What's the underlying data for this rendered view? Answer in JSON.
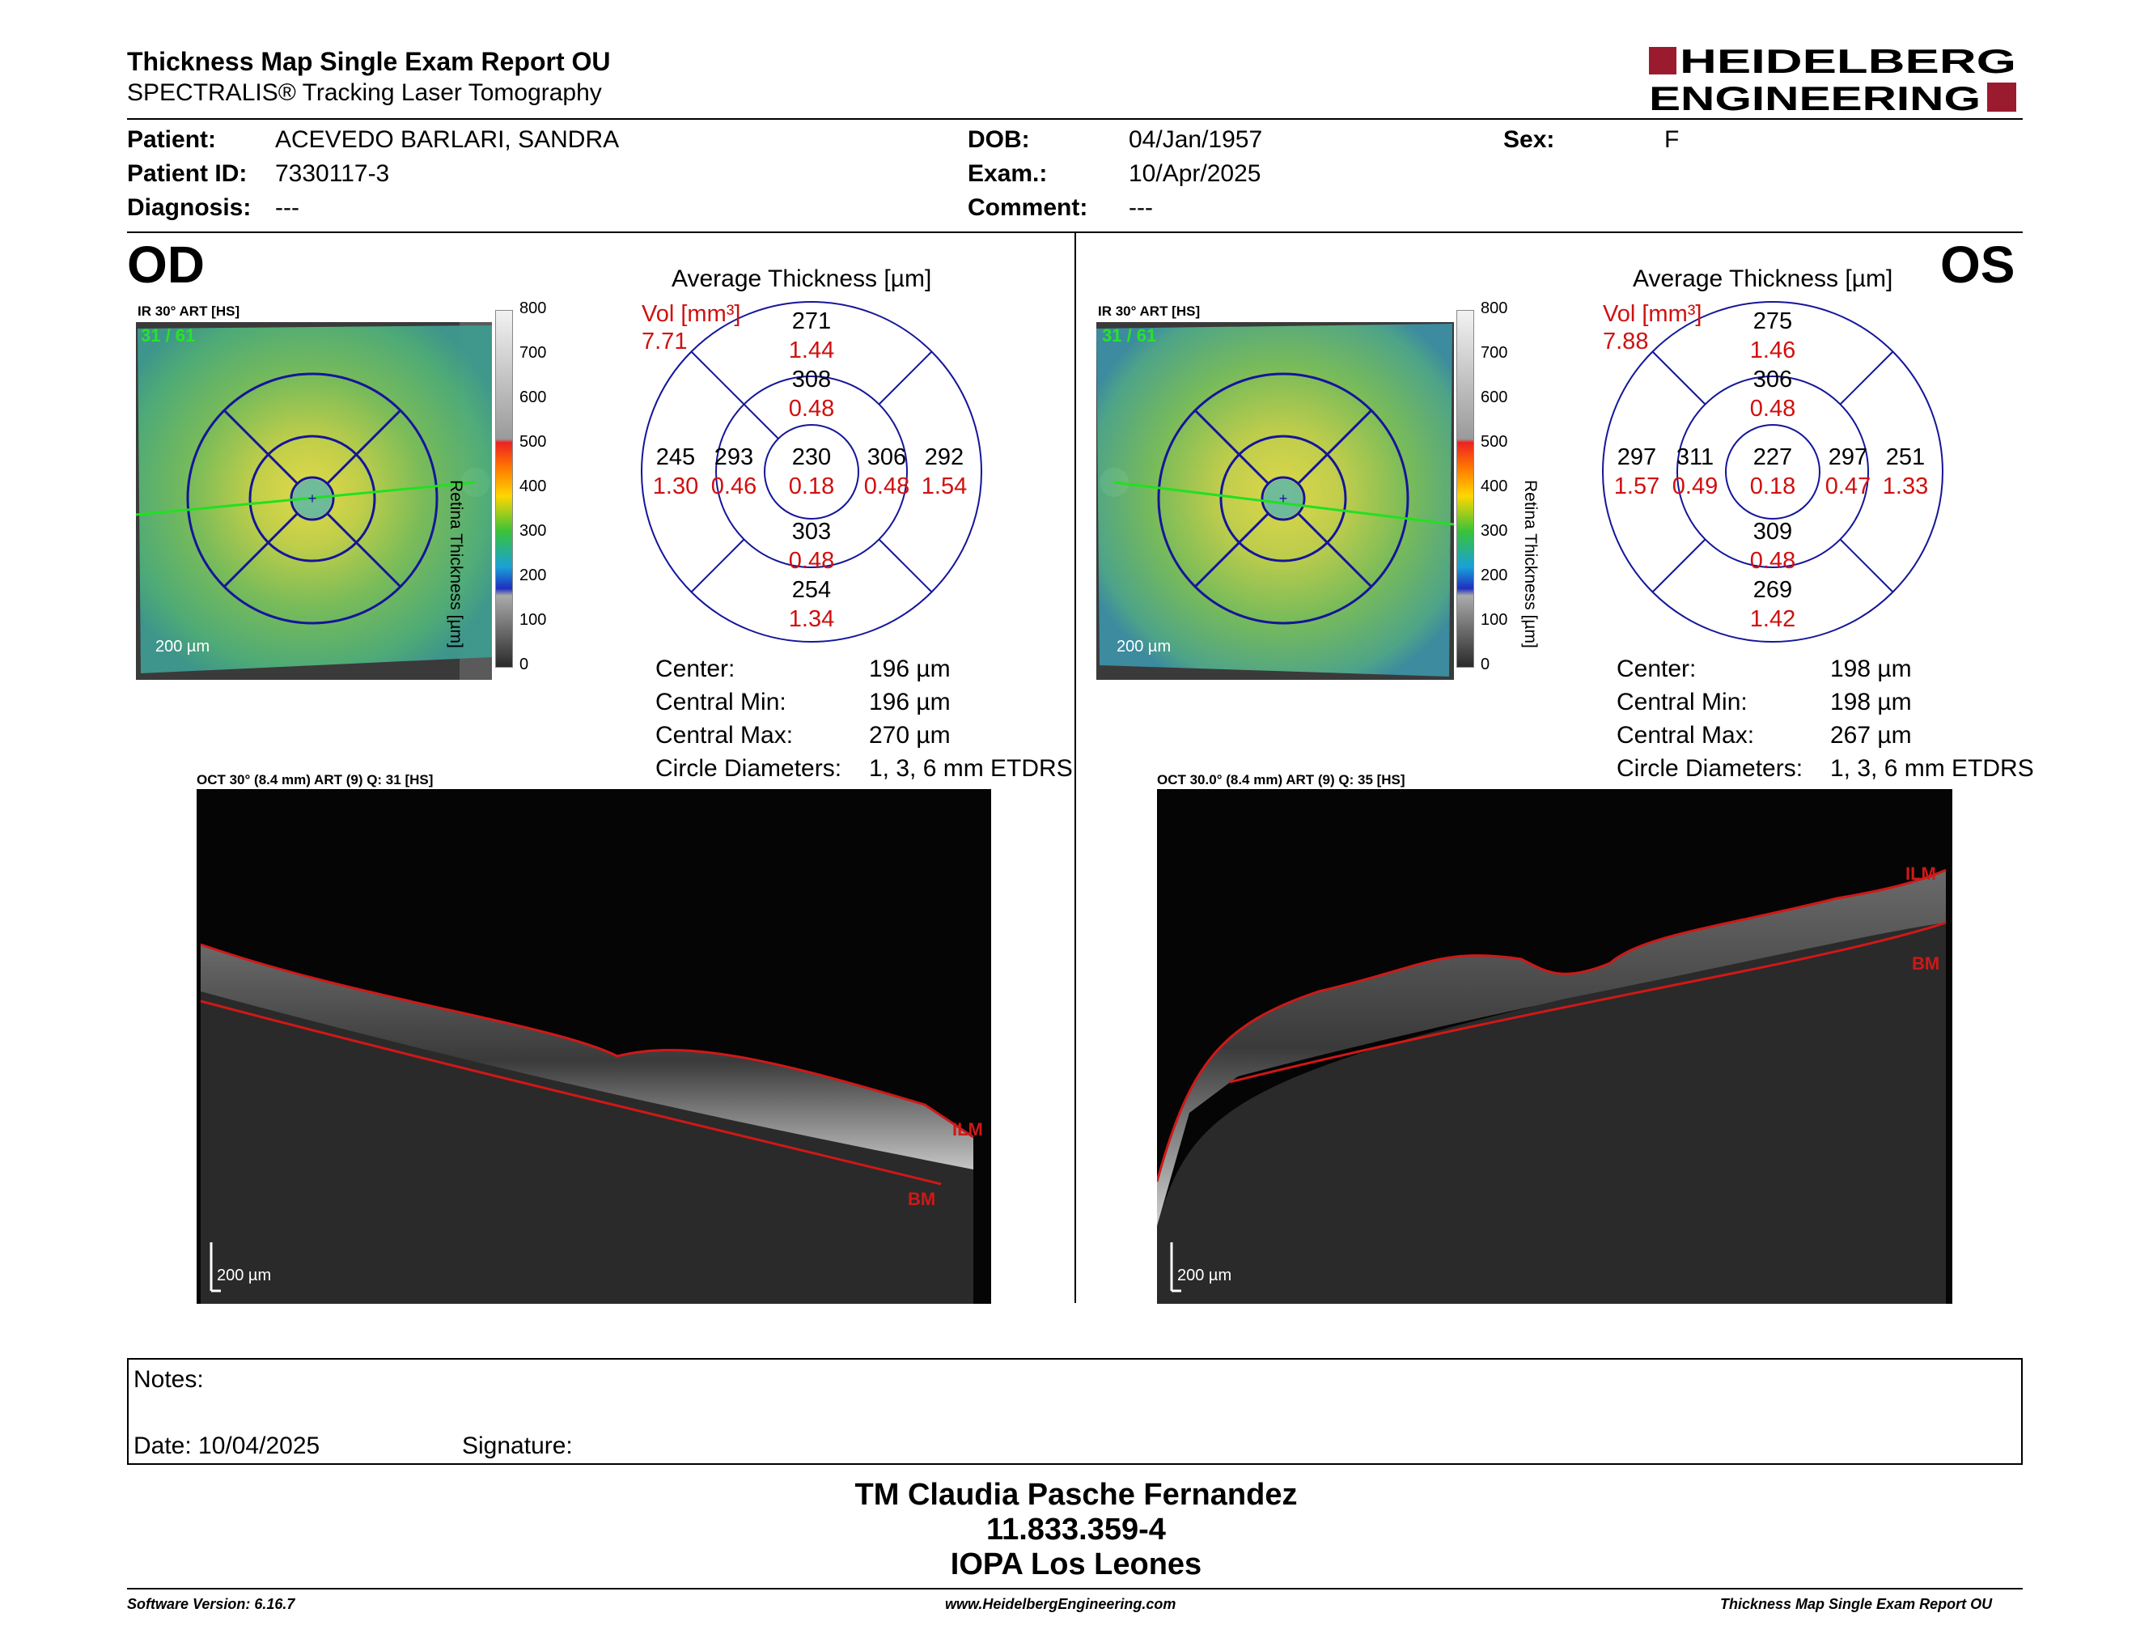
{
  "header": {
    "title": "Thickness Map Single Exam Report OU",
    "subtitle": "SPECTRALIS® Tracking Laser Tomography",
    "brand_line1": "HEIDELBERG",
    "brand_line2": "ENGINEERING",
    "brand_color": "#9b1b2e"
  },
  "patient": {
    "patient_label": "Patient:",
    "patient_value": "ACEVEDO BARLARI, SANDRA",
    "id_label": "Patient ID:",
    "id_value": "7330117-3",
    "diagnosis_label": "Diagnosis:",
    "diagnosis_value": "---",
    "dob_label": "DOB:",
    "dob_value": "04/Jan/1957",
    "exam_label": "Exam.:",
    "exam_value": "10/Apr/2025",
    "comment_label": "Comment:",
    "comment_value": "---",
    "sex_label": "Sex:",
    "sex_value": "F"
  },
  "colorbar": {
    "ticks": [
      "800",
      "700",
      "600",
      "500",
      "400",
      "300",
      "200",
      "100",
      "0"
    ],
    "label": "Retina Thickness [µm]"
  },
  "od": {
    "eye": "OD",
    "ir_label": "IR 30° ART [HS]",
    "ir_counter": "31 / 61",
    "ir_scale": "200 µm",
    "avg_title": "Average Thickness [µm]",
    "vol_label": "Vol [mm³]",
    "vol_total": "7.71",
    "sectors": {
      "outer_sup": "271",
      "outer_sup_vol": "1.44",
      "inner_sup": "308",
      "inner_sup_vol": "0.48",
      "outer_left": "245",
      "outer_left_vol": "1.30",
      "inner_left": "293",
      "inner_left_vol": "0.46",
      "center": "230",
      "center_vol": "0.18",
      "inner_right": "306",
      "inner_right_vol": "0.48",
      "outer_right": "292",
      "outer_right_vol": "1.54",
      "inner_inf": "303",
      "inner_inf_vol": "0.48",
      "outer_inf": "254",
      "outer_inf_vol": "1.34"
    },
    "stats": {
      "center_label": "Center:",
      "center_value": "196 µm",
      "min_label": "Central Min:",
      "min_value": "196 µm",
      "max_label": "Central Max:",
      "max_value": "270 µm",
      "circ_label": "Circle Diameters:",
      "circ_value": "1, 3, 6 mm ETDRS"
    },
    "oct_label": "OCT 30° (8.4 mm) ART (9) Q: 31 [HS]",
    "oct_scale": "200 µm",
    "ilm": "ILM",
    "bm": "BM"
  },
  "os": {
    "eye": "OS",
    "ir_label": "IR 30° ART [HS]",
    "ir_counter": "31 / 61",
    "ir_scale": "200 µm",
    "avg_title": "Average Thickness [µm]",
    "vol_label": "Vol [mm³]",
    "vol_total": "7.88",
    "sectors": {
      "outer_sup": "275",
      "outer_sup_vol": "1.46",
      "inner_sup": "306",
      "inner_sup_vol": "0.48",
      "outer_left": "297",
      "outer_left_vol": "1.57",
      "inner_left": "311",
      "inner_left_vol": "0.49",
      "center": "227",
      "center_vol": "0.18",
      "inner_right": "297",
      "inner_right_vol": "0.47",
      "outer_right": "251",
      "outer_right_vol": "1.33",
      "inner_inf": "309",
      "inner_inf_vol": "0.48",
      "outer_inf": "269",
      "outer_inf_vol": "1.42"
    },
    "stats": {
      "center_label": "Center:",
      "center_value": "198 µm",
      "min_label": "Central Min:",
      "min_value": "198 µm",
      "max_label": "Central Max:",
      "max_value": "267 µm",
      "circ_label": "Circle Diameters:",
      "circ_value": "1, 3, 6 mm ETDRS"
    },
    "oct_label": "OCT 30.0° (8.4 mm) ART (9) Q: 35 [HS]",
    "oct_scale": "200 µm",
    "ilm": "ILM",
    "bm": "BM"
  },
  "notes": {
    "notes_label": "Notes:",
    "date_label": "Date: 10/04/2025",
    "signature_label": "Signature:"
  },
  "signer": {
    "name": "TM Claudia Pasche Fernandez",
    "rut": "11.833.359-4",
    "institution": "IOPA Los Leones"
  },
  "footer": {
    "software": "Software Version: 6.16.7",
    "website": "www.HeidelbergEngineering.com",
    "report": "Thickness Map Single Exam Report OU"
  }
}
